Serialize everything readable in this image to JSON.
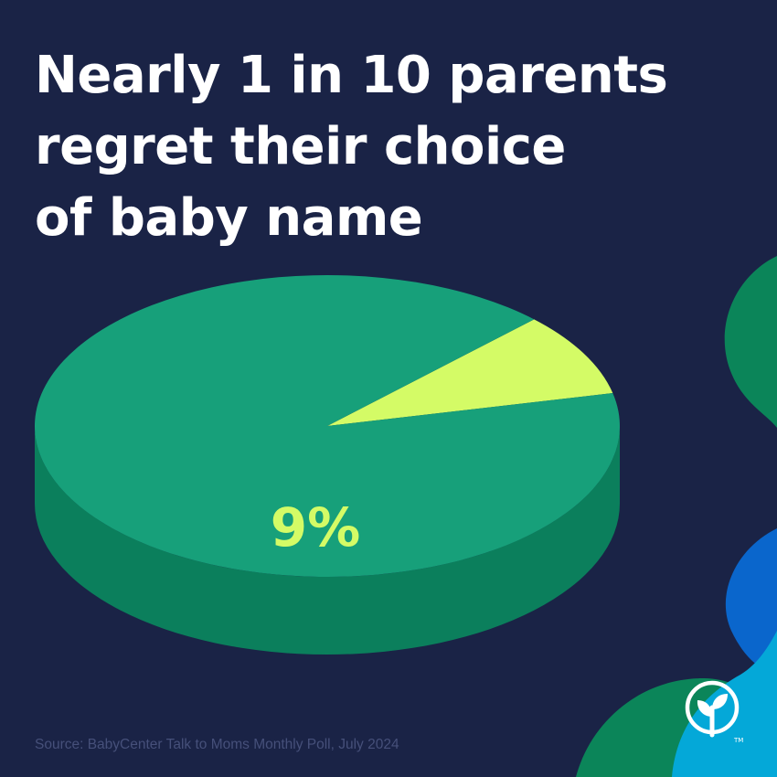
{
  "title_lines": [
    "Nearly 1 in 10 parents",
    "regret their choice",
    "of baby name"
  ],
  "source": "Source: BabyCenter Talk to Moms Monthly Poll, July 2024",
  "colors": {
    "background": "#1a2346",
    "main_slice_top": "#17a07a",
    "main_slice_side": "#0b7f5c",
    "highlight_slice_top": "#d4fb66",
    "highlight_slice_side": "#9ec21f",
    "label": "#d4fb66",
    "wave_green": "#0b8559",
    "wave_blue": "#0a66cc",
    "wave_cyan": "#04a8d8"
  },
  "logo": {
    "name": "babycenter-sprout-logo",
    "trademark": "TM"
  },
  "chart_data": {
    "type": "pie",
    "labels": [
      "",
      ""
    ],
    "values": [
      91,
      9
    ],
    "data_labels": [
      "",
      "9%"
    ],
    "highlight_index": 1
  }
}
